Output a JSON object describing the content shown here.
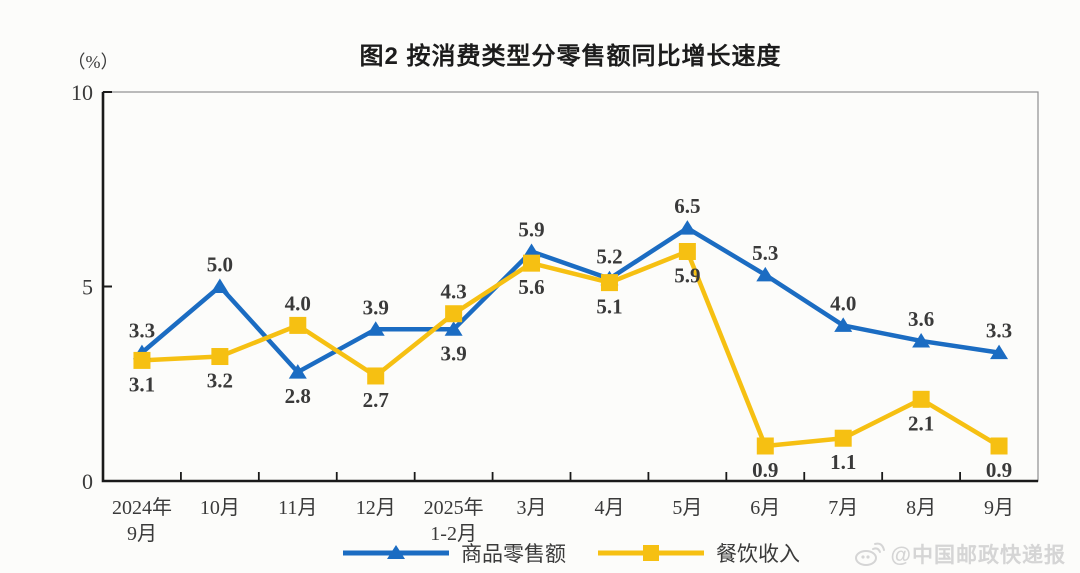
{
  "chart_data": {
    "type": "line",
    "title": "图2  按消费类型分零售额同比增长速度",
    "unit": "（%）",
    "x_categories": [
      [
        "2024年",
        "9月"
      ],
      [
        "10月"
      ],
      [
        "11月"
      ],
      [
        "12月"
      ],
      [
        "2025年",
        "1-2月"
      ],
      [
        "3月"
      ],
      [
        "4月"
      ],
      [
        "5月"
      ],
      [
        "6月"
      ],
      [
        "7月"
      ],
      [
        "8月"
      ],
      [
        "9月"
      ]
    ],
    "y_ticks": [
      0,
      5,
      10
    ],
    "ylim": [
      0,
      10
    ],
    "grid": false,
    "legend_position": "bottom",
    "series": [
      {
        "name": "商品零售额",
        "color": "#1b6cc2",
        "marker": "triangle",
        "values": [
          3.3,
          5.0,
          2.8,
          3.9,
          3.9,
          5.9,
          5.2,
          6.5,
          5.3,
          4.0,
          3.6,
          3.3
        ],
        "label_pos": [
          "above",
          "above",
          "below",
          "above",
          "below",
          "above",
          "above",
          "above",
          "above",
          "above",
          "above",
          "above"
        ]
      },
      {
        "name": "餐饮收入",
        "color": "#f6c012",
        "marker": "square",
        "values": [
          3.1,
          3.2,
          4.0,
          2.7,
          4.3,
          5.6,
          5.1,
          5.9,
          0.9,
          1.1,
          2.1,
          0.9
        ],
        "label_pos": [
          "below",
          "below",
          "above",
          "below",
          "above",
          "below",
          "below",
          "below",
          "below",
          "below",
          "below",
          "below"
        ]
      }
    ]
  },
  "watermark": {
    "text": "@中国邮政快递报"
  },
  "style": {
    "axis_color": "#1a1a1a",
    "border_color": "#8f8f8f",
    "label_color": "#3a3a3a"
  }
}
